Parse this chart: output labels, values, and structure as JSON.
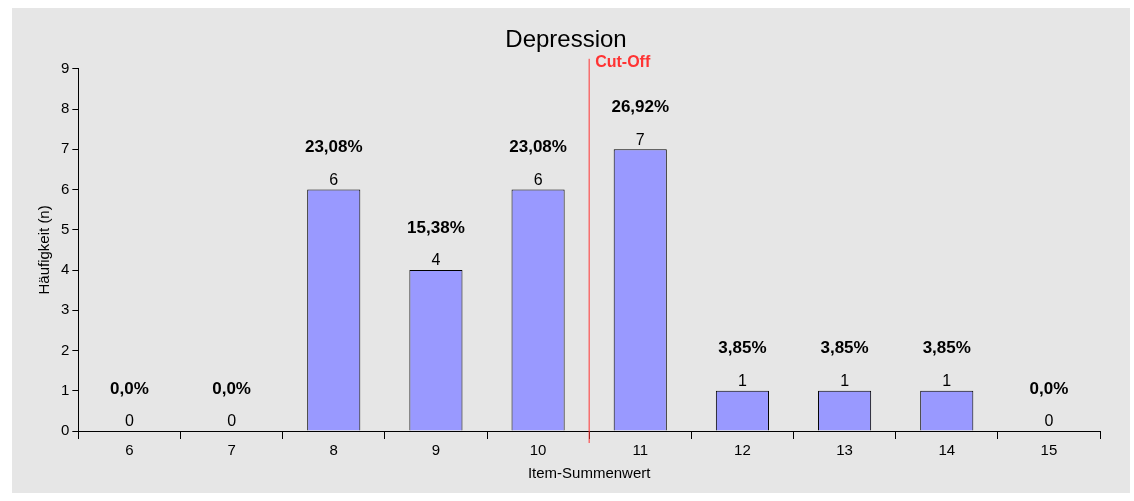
{
  "chart_data": {
    "type": "bar",
    "title": "Depression",
    "xlabel": "Item-Summenwert",
    "ylabel": "Häufigkeit (n)",
    "x": [
      6,
      7,
      8,
      9,
      10,
      11,
      12,
      13,
      14,
      15
    ],
    "xlim": [
      5.5,
      15.5
    ],
    "xticks": [
      6,
      7,
      8,
      9,
      10,
      11,
      12,
      13,
      14,
      15
    ],
    "values": [
      0,
      0,
      6,
      4,
      6,
      7,
      1,
      1,
      1,
      0
    ],
    "color": "#9999ff",
    "ylim": [
      0,
      9
    ],
    "yticks": [
      0,
      1,
      2,
      3,
      4,
      5,
      6,
      7,
      8,
      9
    ],
    "data_labels": true,
    "grid": false,
    "legend": false,
    "ref_lines": [
      {
        "axis": "x",
        "value": 10.5,
        "label": "Cut-Off",
        "color": "#ff3333"
      }
    ],
    "annotations": [
      "0,0%",
      "0,0%",
      "23,08%",
      "15,38%",
      "23,08%",
      "26,92%",
      "3,85%",
      "3,85%",
      "3,85%",
      "0,0%"
    ]
  }
}
